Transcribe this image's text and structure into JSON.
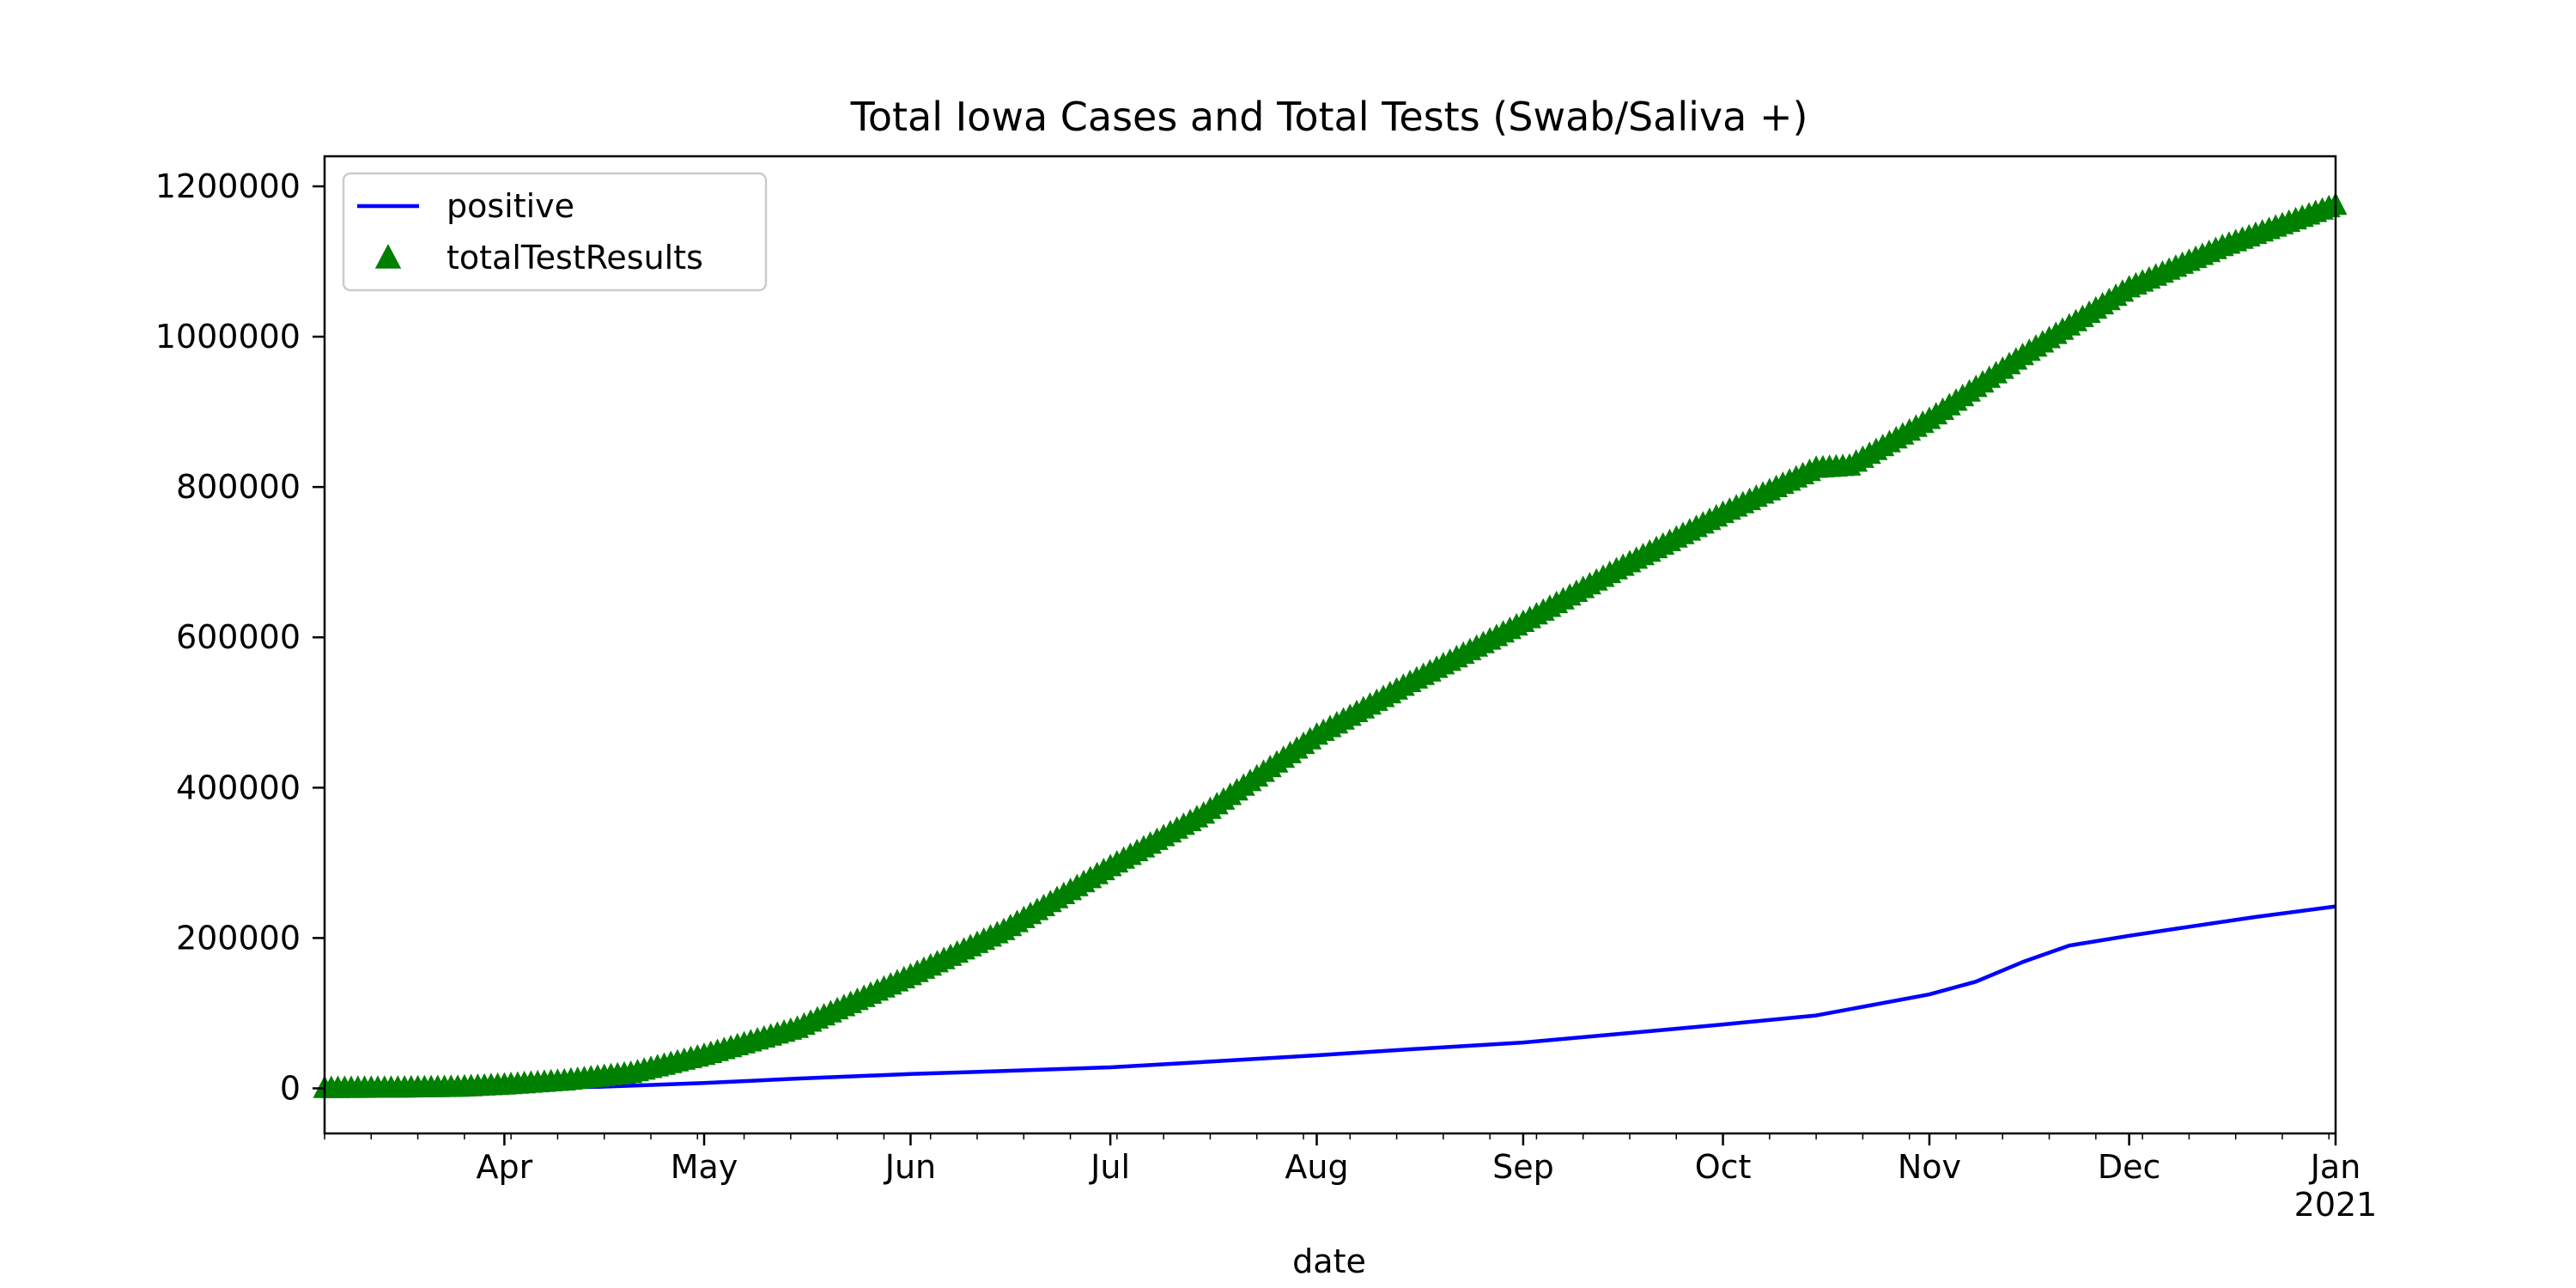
{
  "chart_data": {
    "type": "line",
    "title": "Total Iowa Cases and Total Tests (Swab/Saliva +)",
    "xlabel": "date",
    "ylabel": "",
    "x_range": [
      "2020-03-05",
      "2021-01-01"
    ],
    "ylim": [
      -60000,
      1240000
    ],
    "x_ticks": [
      {
        "date": "2020-04-01",
        "label": "Apr"
      },
      {
        "date": "2020-05-01",
        "label": "May"
      },
      {
        "date": "2020-06-01",
        "label": "Jun"
      },
      {
        "date": "2020-07-01",
        "label": "Jul"
      },
      {
        "date": "2020-08-01",
        "label": "Aug"
      },
      {
        "date": "2020-09-01",
        "label": "Sep"
      },
      {
        "date": "2020-10-01",
        "label": "Oct"
      },
      {
        "date": "2020-11-01",
        "label": "Nov"
      },
      {
        "date": "2020-12-01",
        "label": "Dec"
      },
      {
        "date": "2021-01-01",
        "label": "Jan"
      }
    ],
    "x_year_label": "2021",
    "y_ticks": [
      0,
      200000,
      400000,
      600000,
      800000,
      1000000,
      1200000
    ],
    "y_tick_labels": [
      "0",
      "200000",
      "400000",
      "600000",
      "800000",
      "1000000",
      "1200000"
    ],
    "legend": {
      "placement": "top-left"
    },
    "grid": false,
    "series": [
      {
        "name": "positive",
        "style": "line",
        "color": "#0000ff",
        "points": [
          [
            "2020-03-05",
            0
          ],
          [
            "2020-03-20",
            50
          ],
          [
            "2020-04-01",
            600
          ],
          [
            "2020-04-15",
            2000
          ],
          [
            "2020-05-01",
            7000
          ],
          [
            "2020-05-15",
            13000
          ],
          [
            "2020-06-01",
            19000
          ],
          [
            "2020-06-15",
            23000
          ],
          [
            "2020-07-01",
            28000
          ],
          [
            "2020-07-15",
            35000
          ],
          [
            "2020-08-01",
            44000
          ],
          [
            "2020-08-15",
            52000
          ],
          [
            "2020-09-01",
            61000
          ],
          [
            "2020-09-15",
            72000
          ],
          [
            "2020-10-01",
            85000
          ],
          [
            "2020-10-15",
            97000
          ],
          [
            "2020-11-01",
            125000
          ],
          [
            "2020-11-08",
            142000
          ],
          [
            "2020-11-15",
            168000
          ],
          [
            "2020-11-22",
            190000
          ],
          [
            "2020-12-01",
            203000
          ],
          [
            "2020-12-10",
            215000
          ],
          [
            "2020-12-20",
            228000
          ],
          [
            "2021-01-01",
            242000
          ]
        ]
      },
      {
        "name": "totalTestResults",
        "style": "marker-triangle",
        "color": "#008000",
        "points": [
          [
            "2020-03-05",
            0
          ],
          [
            "2020-03-15",
            300
          ],
          [
            "2020-03-25",
            1500
          ],
          [
            "2020-04-01",
            4500
          ],
          [
            "2020-04-10",
            10000
          ],
          [
            "2020-04-20",
            20000
          ],
          [
            "2020-05-01",
            44000
          ],
          [
            "2020-05-15",
            80000
          ],
          [
            "2020-06-01",
            150000
          ],
          [
            "2020-06-15",
            210000
          ],
          [
            "2020-07-01",
            295000
          ],
          [
            "2020-07-15",
            365000
          ],
          [
            "2020-08-01",
            470000
          ],
          [
            "2020-08-15",
            540000
          ],
          [
            "2020-09-01",
            620000
          ],
          [
            "2020-09-15",
            690000
          ],
          [
            "2020-10-01",
            765000
          ],
          [
            "2020-10-15",
            825000
          ],
          [
            "2020-10-20",
            828000
          ],
          [
            "2020-11-01",
            890000
          ],
          [
            "2020-11-15",
            975000
          ],
          [
            "2020-12-01",
            1065000
          ],
          [
            "2020-12-15",
            1120000
          ],
          [
            "2021-01-01",
            1175000
          ]
        ]
      }
    ]
  }
}
